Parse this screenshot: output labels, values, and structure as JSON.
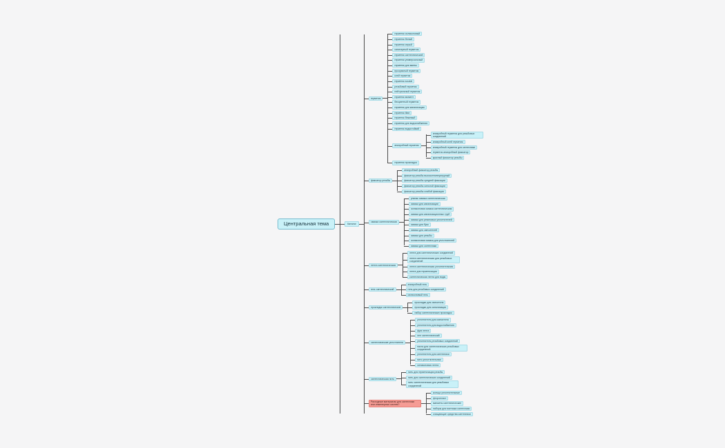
{
  "colors": {
    "background": "#f5f5f6",
    "topic_fill": "#c9f1f8",
    "topic_border": "#69b4c8",
    "alert_fill": "#f59b94",
    "alert_border": "#d9635a",
    "connector": "#4a4a4a"
  },
  "map": {
    "label": "Центральная тема",
    "type": "central",
    "children": [
      {
        "label": "Каталог",
        "type": "hub",
        "children": [
          {
            "label": "герметик",
            "type": "branch",
            "children": [
              {
                "label": "герметик силиконовый"
              },
              {
                "label": "герметик белый"
              },
              {
                "label": "герметик серый"
              },
              {
                "label": "санитарный герметик"
              },
              {
                "label": "герметик сантехнический"
              },
              {
                "label": "герметик универсальный"
              },
              {
                "label": "герметик для ванны"
              },
              {
                "label": "прозрачный герметик"
              },
              {
                "label": "клей герметик"
              },
              {
                "label": "герметик soudal"
              },
              {
                "label": "резьбовой герметик"
              },
              {
                "label": "нейтральный герметик"
              },
              {
                "label": "герметик момент"
              },
              {
                "label": "бесцветный герметик"
              },
              {
                "label": "герметик для канализации"
              },
              {
                "label": "герметик titan"
              },
              {
                "label": "герметик бежевый"
              },
              {
                "label": "герметик для водоснабжения"
              },
              {
                "label": "герметик водостойкий"
              },
              {
                "label": "анаэробный герметик",
                "type": "branch",
                "children": [
                  {
                    "label": "анаэробный герметик для резьбовых соединений"
                  },
                  {
                    "label": "анаэробный клей герметик"
                  },
                  {
                    "label": "анаэробный герметик для сантехники"
                  },
                  {
                    "label": "герметик анаэробный фиксатор"
                  },
                  {
                    "label": "красный фиксатор резьбы"
                  }
                ]
              },
              {
                "label": "герметик прокладка"
              }
            ]
          },
          {
            "label": "фиксатор резьбы",
            "type": "branch",
            "children": [
              {
                "label": "анаэробный фиксатор резьбы"
              },
              {
                "label": "фиксатор резьбы высокотемпературный"
              },
              {
                "label": "фиксатор резьбы средней фиксации"
              },
              {
                "label": "фиксатор резьбы сильной фиксации"
              },
              {
                "label": "фиксатор резьбы слабой фиксации"
              }
            ]
          },
          {
            "label": "смазка сантехническая",
            "type": "branch",
            "children": [
              {
                "label": "унипак смазка сантехническая"
              },
              {
                "label": "смазка для канализации"
              },
              {
                "label": "силиконовая смазка сантехническая"
              },
              {
                "label": "смазка для канализационных труб"
              },
              {
                "label": "смазка для резиновых уплотнителей"
              },
              {
                "label": "смазка для букс"
              },
              {
                "label": "смазка для смесителей"
              },
              {
                "label": "смазка для резьбы"
              },
              {
                "label": "силиконовая смазка для уплотнителей"
              },
              {
                "label": "смазка для сантехники"
              }
            ]
          },
          {
            "label": "лента сантехническая",
            "type": "branch",
            "children": [
              {
                "label": "лента для сантехнических соединений"
              },
              {
                "label": "лента сантехническая для резьбовых соединений"
              },
              {
                "label": "лента сантехническая уплотнительная"
              },
              {
                "label": "лента для герметизации"
              },
              {
                "label": "сантехническая лента для воды"
              }
            ]
          },
          {
            "label": "гель сантехнический",
            "type": "branch",
            "children": [
              {
                "label": "анаэробный гель"
              },
              {
                "label": "гель для резьбовых соединений"
              },
              {
                "label": "силиконовый гель"
              }
            ]
          },
          {
            "label": "прокладки сантехнические",
            "type": "branch",
            "children": [
              {
                "label": "прокладки для смесителя"
              },
              {
                "label": "прокладки для канализации"
              },
              {
                "label": "набор сантехнических прокладок"
              }
            ]
          },
          {
            "label": "сантехнические уплотнители",
            "type": "branch",
            "children": [
              {
                "label": "уплотнители для смесителя"
              },
              {
                "label": "уплотнители для водоснабжения"
              },
              {
                "label": "фум лента"
              },
              {
                "label": "лен сантехнический"
              },
              {
                "label": "уплотнитель резьбовых соединений"
              },
              {
                "label": "паста для сантехнических резьбовых соединений"
              },
              {
                "label": "уплотнители для сантехники"
              },
              {
                "label": "нить уплотнительная"
              },
              {
                "label": "силиконовая лента"
              }
            ]
          },
          {
            "label": "сантехническая нить",
            "type": "branch",
            "children": [
              {
                "label": "нить для герметизации резьбы"
              },
              {
                "label": "нить для сантехнических соединений"
              },
              {
                "label": "нить сантехническая для резьбовых соединений"
              }
            ]
          },
          {
            "label": "Расходные материалы для сантехники или инженерных систем?",
            "type": "alert",
            "children": [
              {
                "label": "кольца уплотнительные"
              },
              {
                "label": "фторопласт"
              },
              {
                "label": "манжеты сантехнические"
              },
              {
                "label": "наборы для монтажа сантехники"
              },
              {
                "label": "очищающие средства сантехники"
              }
            ]
          }
        ]
      }
    ]
  }
}
